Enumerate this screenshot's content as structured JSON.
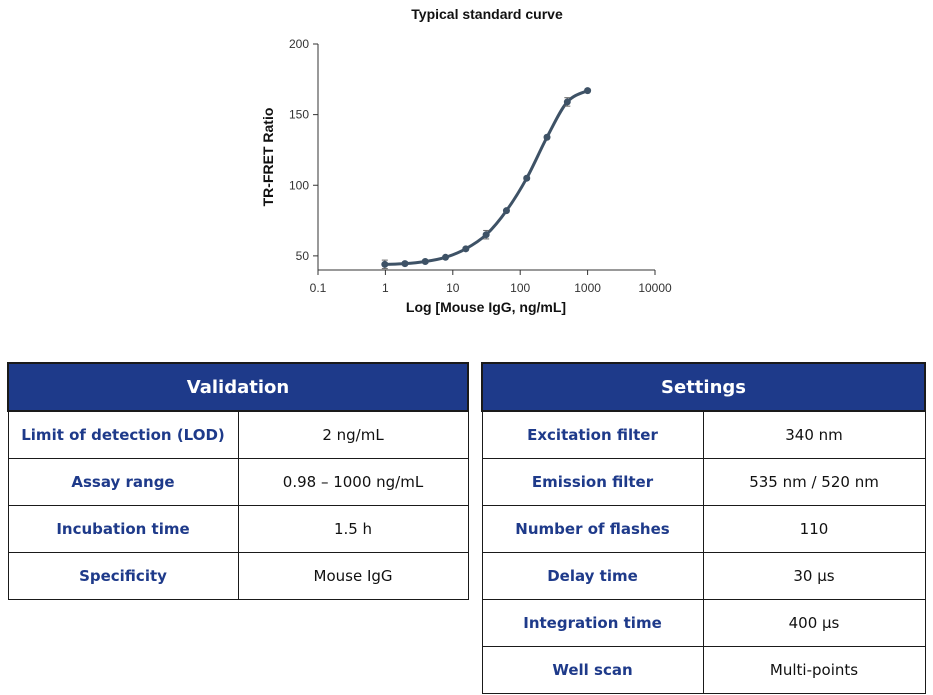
{
  "chart_data": {
    "type": "line",
    "title": "Typical standard curve",
    "xlabel": "Log [Mouse IgG, ng/mL]",
    "ylabel": "TR-FRET Ratio",
    "x_scale": "log",
    "xlim": [
      0.1,
      10000
    ],
    "ylim": [
      40,
      200
    ],
    "x_ticks": [
      "0.1",
      "1",
      "10",
      "100",
      "1000",
      "10000"
    ],
    "x_tick_values": [
      0.1,
      1,
      10,
      100,
      1000,
      10000
    ],
    "y_ticks": [
      "50",
      "100",
      "150",
      "200"
    ],
    "y_tick_values": [
      50,
      100,
      150,
      200
    ],
    "grid": false,
    "line_color": "#3e5266",
    "series": [
      {
        "x": [
          0.98,
          1.95,
          3.9,
          7.8,
          15.6,
          31.25,
          62.5,
          125,
          250,
          500,
          1000
        ],
        "y": [
          44,
          44.5,
          46,
          49,
          55,
          65,
          82,
          105,
          134,
          159,
          167
        ],
        "error": [
          3,
          1,
          1,
          1,
          1,
          3,
          1,
          1,
          1,
          3,
          1
        ]
      }
    ]
  },
  "validation": {
    "header": "Validation",
    "rows": [
      {
        "label": "Limit of detection (LOD)",
        "value": "2 ng/mL"
      },
      {
        "label": "Assay range",
        "value": "0.98 – 1000 ng/mL"
      },
      {
        "label": "Incubation time",
        "value": "1.5 h"
      },
      {
        "label": "Specificity",
        "value": "Mouse IgG"
      }
    ]
  },
  "settings": {
    "header": "Settings",
    "rows": [
      {
        "label": "Excitation filter",
        "value": "340 nm"
      },
      {
        "label": "Emission filter",
        "value": "535 nm / 520 nm"
      },
      {
        "label": "Number of flashes",
        "value": "110"
      },
      {
        "label": "Delay time",
        "value": "30 µs"
      },
      {
        "label": "Integration time",
        "value": "400 µs"
      },
      {
        "label": "Well scan",
        "value": "Multi-points"
      }
    ]
  },
  "colors": {
    "header_bg": "#1e3a8a",
    "label_text": "#1e3a8a"
  }
}
